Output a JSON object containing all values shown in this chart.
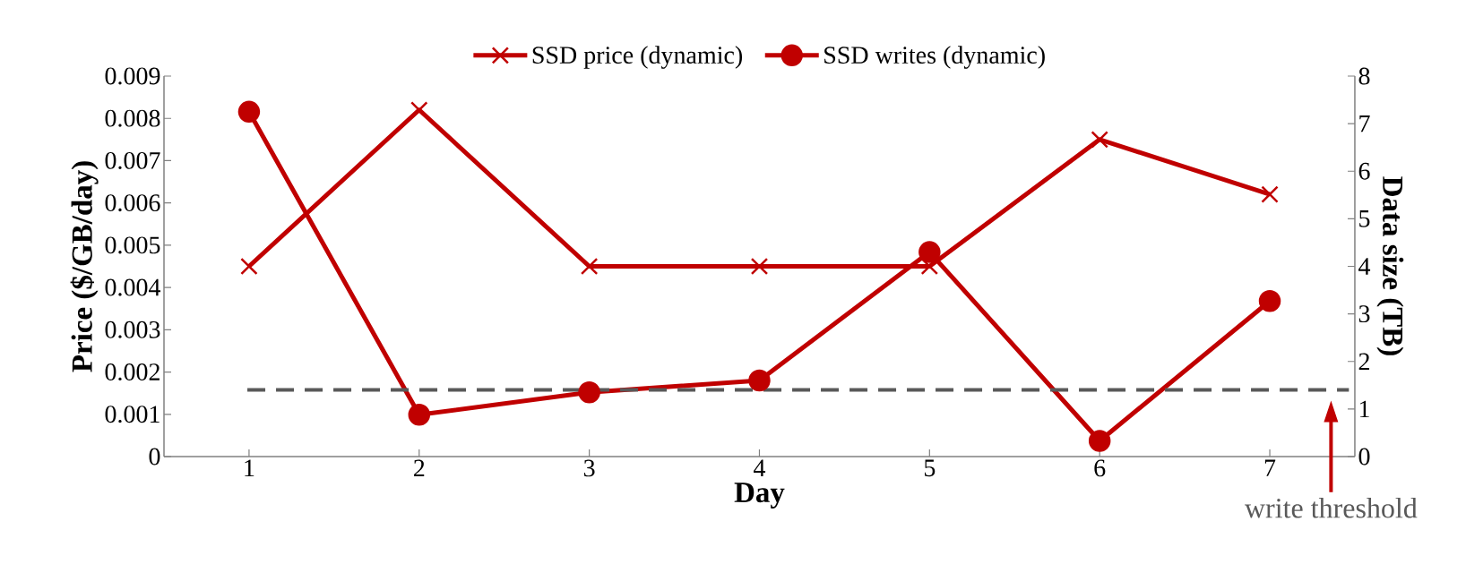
{
  "chart_data": {
    "type": "line",
    "categories": [
      "1",
      "2",
      "3",
      "4",
      "5",
      "6",
      "7"
    ],
    "xlabel": "Day",
    "ylabel": "Price ($/GB/day)",
    "y2label": "Data size (TB)",
    "ylim": [
      0,
      0.009
    ],
    "yticks": [
      0,
      0.001,
      0.002,
      0.003,
      0.004,
      0.005,
      0.006,
      0.007,
      0.008,
      0.009
    ],
    "y2lim": [
      0,
      8
    ],
    "y2ticks": [
      0,
      1,
      2,
      3,
      4,
      5,
      6,
      7,
      8
    ],
    "legend": "top",
    "series": [
      {
        "name": "SSD price (dynamic)",
        "color": "#c00000",
        "marker": "cross",
        "values": [
          0.0045,
          0.0082,
          0.0045,
          0.0045,
          0.0045,
          0.0075,
          0.0062
        ]
      },
      {
        "name": "SSD writes (dynamic)",
        "color": "#c00000",
        "marker": "circle",
        "axis": "y2",
        "values": [
          7.25,
          0.88,
          1.35,
          1.6,
          4.3,
          0.33,
          3.27
        ]
      }
    ],
    "ref_lines": [
      {
        "axis": "y2",
        "value": 1.4,
        "color": "#595959",
        "line_style": "dashed"
      }
    ],
    "annotations": [
      "write threshold"
    ]
  }
}
